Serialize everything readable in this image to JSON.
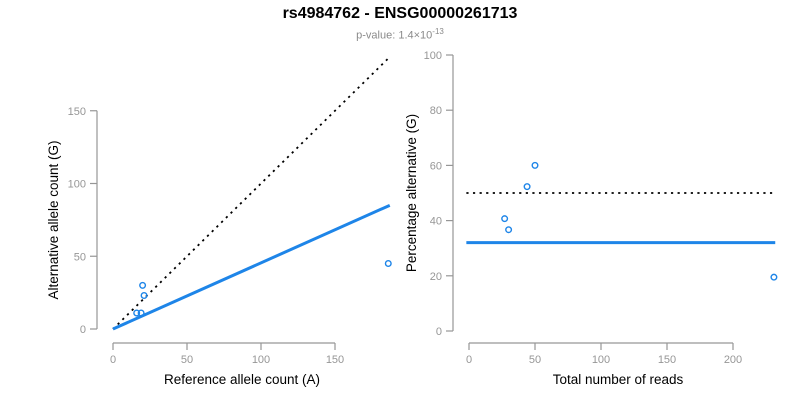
{
  "header": {
    "title": "rs4984762 - ENSG00000261713",
    "pvalue_prefix": "p-value: ",
    "pvalue_base": "1.4×10",
    "pvalue_exponent": "-13"
  },
  "colors": {
    "accent_blue": "#1e85e8",
    "axis_gray": "#969696",
    "line_black": "#000000",
    "subtitle_gray": "#8a8a8a"
  },
  "chart_data": [
    {
      "type": "scatter",
      "xlabel": "Reference allele count (A)",
      "ylabel": "Alternative allele count (G)",
      "xticks": [
        0,
        50,
        100,
        150
      ],
      "yticks": [
        0,
        50,
        100,
        150
      ],
      "xlim": [
        0,
        190
      ],
      "ylim": [
        0,
        192
      ],
      "grid": false,
      "legend": false,
      "points": [
        [
          20,
          30
        ],
        [
          21,
          23
        ],
        [
          16,
          11
        ],
        [
          19,
          11
        ],
        [
          186,
          45
        ]
      ],
      "lines": [
        {
          "name": "identity-line",
          "style": "dotted",
          "color": "black",
          "x1": 0,
          "y1": 0,
          "x2": 186,
          "y2": 186
        },
        {
          "name": "fitted-ratio-line",
          "style": "solid",
          "color": "blue",
          "x1": 0,
          "y1": 0,
          "x2": 187,
          "y2": 85
        }
      ]
    },
    {
      "type": "scatter",
      "xlabel": "Total number of reads",
      "ylabel": "Percentage alternative (G)",
      "xticks": [
        0,
        50,
        100,
        150,
        200
      ],
      "yticks": [
        0,
        20,
        40,
        60,
        80,
        100
      ],
      "xlim": [
        0,
        235
      ],
      "ylim": [
        0,
        100
      ],
      "grid": false,
      "legend": false,
      "points": [
        [
          50,
          60
        ],
        [
          44,
          52.3
        ],
        [
          27,
          40.7
        ],
        [
          30,
          36.7
        ],
        [
          231,
          19.5
        ]
      ],
      "lines": [
        {
          "name": "expected-50pct-line",
          "style": "dotted",
          "color": "black",
          "x1": -2,
          "y1": 50,
          "x2": 232,
          "y2": 50
        },
        {
          "name": "observed-pct-line",
          "style": "solid",
          "color": "blue",
          "x1": -2,
          "y1": 32,
          "x2": 232,
          "y2": 32
        }
      ]
    }
  ]
}
